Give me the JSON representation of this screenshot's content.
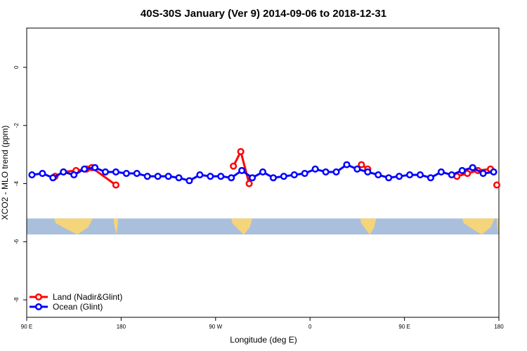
{
  "chart_data": {
    "type": "line",
    "title": "40S-30S January (Ver 9)   2014-09-06 to 2018-12-31",
    "xlabel": "Longitude (deg E)",
    "ylabel": "XCO2 - MLO trend (ppm)",
    "x_ticks": [
      {
        "value": 90,
        "label": "90 E"
      },
      {
        "value": 180,
        "label": "180"
      },
      {
        "value": 270,
        "label": "90 W"
      },
      {
        "value": 360,
        "label": "0"
      },
      {
        "value": 450,
        "label": "90 E"
      },
      {
        "value": 540,
        "label": "180"
      }
    ],
    "y_ticks": [
      0,
      -2,
      -4,
      -6,
      -8
    ],
    "xlim": [
      90,
      540
    ],
    "ylim": [
      -8.6,
      1.35
    ],
    "grid": false,
    "legend_position": "bottom-left",
    "series": [
      {
        "name": "Land (Nadir&Glint)",
        "color": "#ff0000",
        "segments": [
          [
            [
              117,
              -3.75
            ],
            [
              125,
              -3.6
            ],
            [
              137,
              -3.55
            ],
            [
              147,
              -3.5
            ],
            [
              152,
              -3.45
            ],
            [
              175,
              -4.05
            ]
          ],
          [
            [
              287,
              -3.4
            ],
            [
              294,
              -2.9
            ],
            [
              302,
              -4.0
            ]
          ],
          [
            [
              409,
              -3.35
            ],
            [
              415,
              -3.5
            ]
          ],
          [
            [
              500,
              -3.75
            ],
            [
              510,
              -3.65
            ],
            [
              520,
              -3.55
            ],
            [
              532,
              -3.5
            ]
          ],
          [
            [
              538,
              -4.05
            ]
          ]
        ]
      },
      {
        "name": "Ocean (Glint)",
        "color": "#0000ff",
        "segments": [
          [
            [
              95,
              -3.7
            ],
            [
              105,
              -3.65
            ],
            [
              115,
              -3.8
            ],
            [
              125,
              -3.6
            ],
            [
              135,
              -3.7
            ],
            [
              145,
              -3.5
            ],
            [
              155,
              -3.45
            ],
            [
              165,
              -3.6
            ],
            [
              175,
              -3.6
            ],
            [
              185,
              -3.65
            ],
            [
              195,
              -3.65
            ],
            [
              205,
              -3.75
            ],
            [
              215,
              -3.75
            ],
            [
              225,
              -3.75
            ],
            [
              235,
              -3.8
            ],
            [
              245,
              -3.9
            ],
            [
              255,
              -3.7
            ],
            [
              265,
              -3.75
            ],
            [
              275,
              -3.75
            ],
            [
              285,
              -3.8
            ],
            [
              295,
              -3.55
            ],
            [
              305,
              -3.8
            ],
            [
              315,
              -3.6
            ],
            [
              325,
              -3.8
            ],
            [
              335,
              -3.75
            ],
            [
              345,
              -3.7
            ],
            [
              355,
              -3.65
            ],
            [
              365,
              -3.5
            ],
            [
              375,
              -3.6
            ],
            [
              385,
              -3.6
            ],
            [
              395,
              -3.35
            ],
            [
              405,
              -3.5
            ],
            [
              415,
              -3.6
            ],
            [
              425,
              -3.7
            ],
            [
              435,
              -3.8
            ],
            [
              445,
              -3.75
            ],
            [
              455,
              -3.7
            ],
            [
              465,
              -3.7
            ],
            [
              475,
              -3.8
            ],
            [
              485,
              -3.6
            ],
            [
              495,
              -3.7
            ],
            [
              505,
              -3.55
            ],
            [
              515,
              -3.45
            ],
            [
              525,
              -3.65
            ],
            [
              535,
              -3.6
            ]
          ]
        ]
      }
    ],
    "map_band": {
      "y_range": [
        -5.75,
        -5.2
      ],
      "ocean_color": "#aabfdc",
      "land_color": "#f5d57a",
      "land_spans": [
        [
          116,
          153
        ],
        [
          173,
          177
        ],
        [
          285,
          305
        ],
        [
          408,
          423
        ],
        [
          505,
          536
        ],
        [
          538,
          540
        ]
      ]
    }
  }
}
